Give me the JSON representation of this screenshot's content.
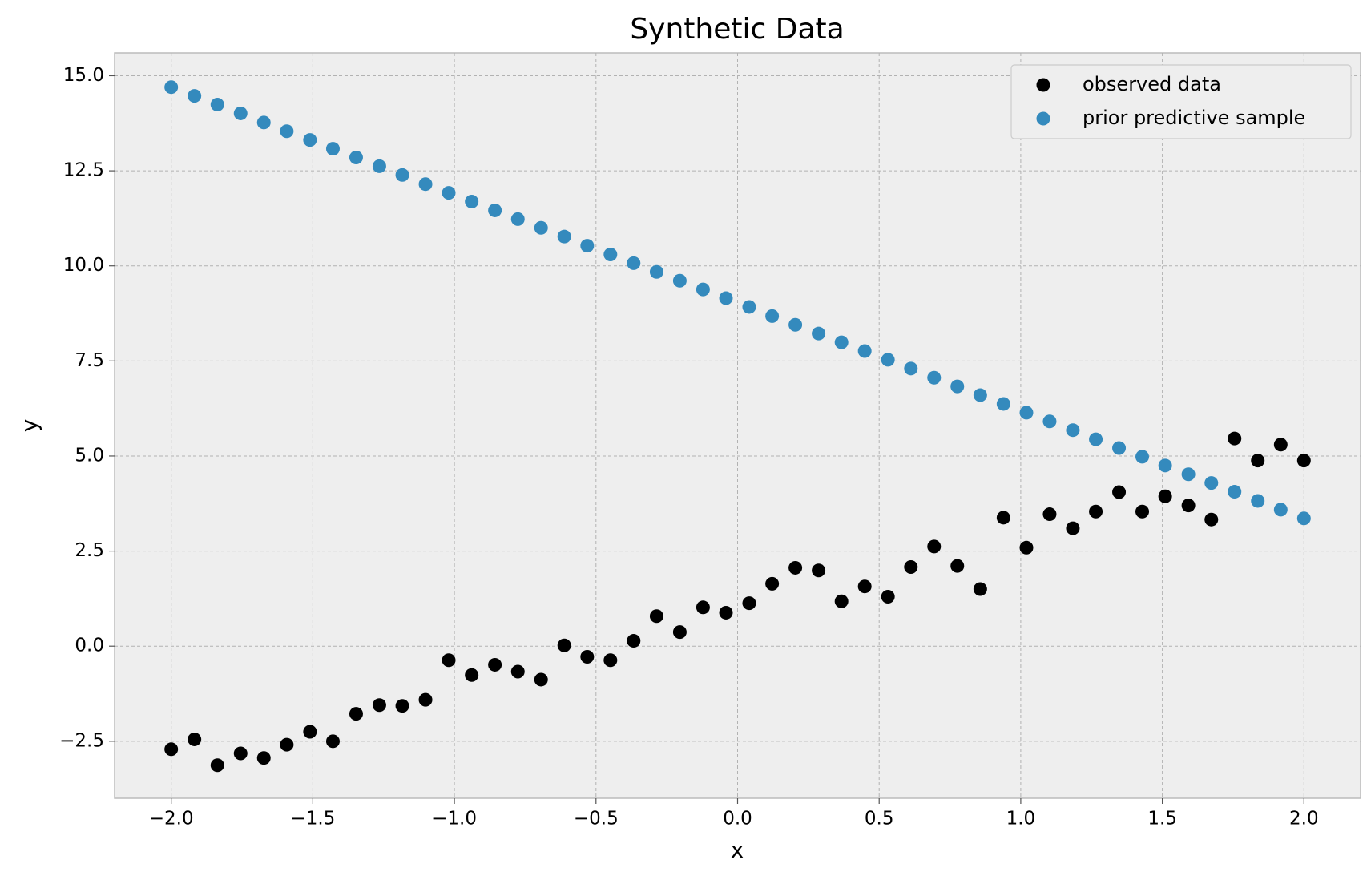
{
  "chart_data": {
    "type": "scatter",
    "title": "Synthetic Data",
    "x_label": "x",
    "y_label": "y",
    "x": [
      -2.0,
      -1.918,
      -1.837,
      -1.755,
      -1.673,
      -1.592,
      -1.51,
      -1.429,
      -1.347,
      -1.265,
      -1.184,
      -1.102,
      -1.02,
      -0.939,
      -0.857,
      -0.776,
      -0.694,
      -0.612,
      -0.531,
      -0.449,
      -0.367,
      -0.286,
      -0.204,
      -0.122,
      -0.041,
      0.041,
      0.122,
      0.204,
      0.286,
      0.367,
      0.449,
      0.531,
      0.612,
      0.694,
      0.776,
      0.857,
      0.939,
      1.02,
      1.102,
      1.184,
      1.265,
      1.347,
      1.429,
      1.51,
      1.592,
      1.673,
      1.755,
      1.837,
      1.918,
      2.0
    ],
    "series": [
      {
        "name": "observed data",
        "color": "#000000",
        "values": [
          -2.71,
          -2.45,
          -3.13,
          -2.82,
          -2.94,
          -2.59,
          -2.25,
          -2.5,
          -1.78,
          -1.55,
          -1.57,
          -1.41,
          -0.37,
          -0.76,
          -0.49,
          -0.67,
          -0.88,
          0.02,
          -0.28,
          -0.37,
          0.14,
          0.79,
          0.37,
          1.02,
          0.88,
          1.13,
          1.64,
          2.06,
          1.99,
          1.18,
          1.57,
          1.3,
          2.08,
          2.62,
          2.11,
          1.5,
          3.38,
          2.59,
          3.47,
          3.1,
          3.54,
          4.05,
          3.54,
          3.94,
          3.7,
          3.33,
          5.46,
          4.88,
          5.3,
          4.88
        ]
      },
      {
        "name": "prior predictive sample",
        "color": "#348ABD",
        "values": [
          14.7,
          14.47,
          14.24,
          14.01,
          13.77,
          13.54,
          13.31,
          13.08,
          12.85,
          12.62,
          12.39,
          12.15,
          11.92,
          11.69,
          11.46,
          11.23,
          11.0,
          10.77,
          10.53,
          10.3,
          10.07,
          9.84,
          9.61,
          9.38,
          9.15,
          8.92,
          8.68,
          8.45,
          8.22,
          7.99,
          7.76,
          7.53,
          7.3,
          7.06,
          6.83,
          6.6,
          6.37,
          6.14,
          5.91,
          5.68,
          5.44,
          5.21,
          4.98,
          4.75,
          4.52,
          4.29,
          4.06,
          3.82,
          3.59,
          3.36
        ]
      }
    ],
    "xlim": [
      -2.2,
      2.2
    ],
    "xticks": [
      {
        "value": -2.0,
        "label": "−2.0"
      },
      {
        "value": -1.5,
        "label": "−1.5"
      },
      {
        "value": -1.0,
        "label": "−1.0"
      },
      {
        "value": -0.5,
        "label": "−0.5"
      },
      {
        "value": 0.0,
        "label": "0.0"
      },
      0.5,
      {
        "value": 1.0,
        "label": "1.0"
      },
      1.5,
      {
        "value": 2.0,
        "label": "2.0"
      }
    ],
    "ylim": [
      -4.0,
      15.6
    ],
    "yticks": [
      {
        "value": -2.5,
        "label": "−2.5"
      },
      {
        "value": 0.0,
        "label": "0.0"
      },
      2.5,
      {
        "value": 5.0,
        "label": "5.0"
      },
      7.5,
      {
        "value": 10.0,
        "label": "10.0"
      },
      12.5,
      {
        "value": 15.0,
        "label": "15.0"
      }
    ],
    "grid": true,
    "legend_position": "upper-right"
  }
}
